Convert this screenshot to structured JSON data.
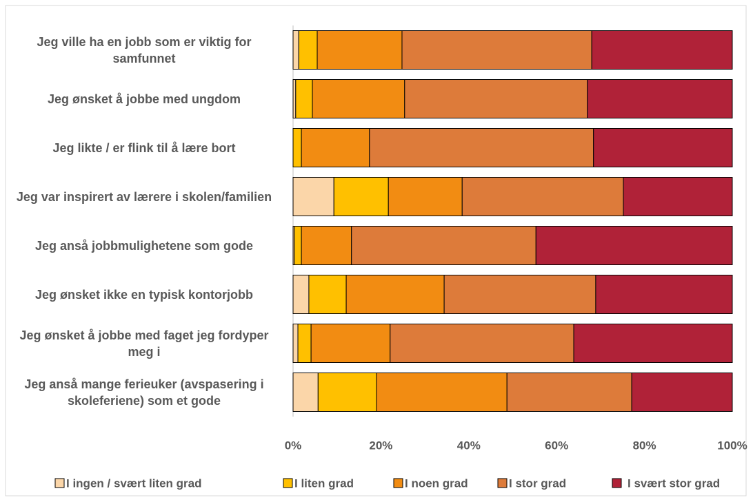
{
  "chart_data": {
    "type": "stacked_barh",
    "categories": [
      "Jeg ville ha en jobb som er viktig for samfunnet",
      "Jeg ønsket å jobbe med ungdom",
      "Jeg likte / er flink til å lære bort",
      "Jeg var inspirert av lærere i skolen/familien",
      "Jeg anså jobbmulighetene som gode",
      "Jeg ønsket ikke en typisk kontorjobb",
      "Jeg ønsket å jobbe med faget jeg fordyper meg i",
      "Jeg anså mange ferieuker (avspasering i skoleferiene) som et gode"
    ],
    "series": [
      {
        "name": "I ingen / svært liten grad",
        "color": "#fbd6a9",
        "values": [
          1.3,
          0.6,
          0,
          9.3,
          0.3,
          3.6,
          1.1,
          5.7
        ]
      },
      {
        "name": "I liten grad",
        "color": "#ffc000",
        "values": [
          4.2,
          3.8,
          1.9,
          12.4,
          1.6,
          8.5,
          3.0,
          13.3
        ]
      },
      {
        "name": "I noen grad",
        "color": "#f28c12",
        "values": [
          19.3,
          21.0,
          15.5,
          16.8,
          11.4,
          22.3,
          18.0,
          29.7
        ]
      },
      {
        "name": "I stor grad",
        "color": "#dd7b3a",
        "values": [
          43.2,
          41.6,
          51.0,
          36.7,
          42.0,
          34.5,
          41.8,
          28.4
        ]
      },
      {
        "name": "I svært stor grad",
        "color": "#b02238",
        "values": [
          32.0,
          33.0,
          31.6,
          24.8,
          44.7,
          31.1,
          36.1,
          22.9
        ]
      }
    ],
    "xlim": [
      0,
      100
    ],
    "xticks": [
      {
        "value": 0,
        "label": "0%"
      },
      {
        "value": 20,
        "label": "20%"
      },
      {
        "value": 40,
        "label": "40%"
      },
      {
        "value": 60,
        "label": "60%"
      },
      {
        "value": 80,
        "label": "80%"
      },
      {
        "value": 100,
        "label": "100%"
      }
    ],
    "grid": false,
    "legend": "bottom"
  }
}
